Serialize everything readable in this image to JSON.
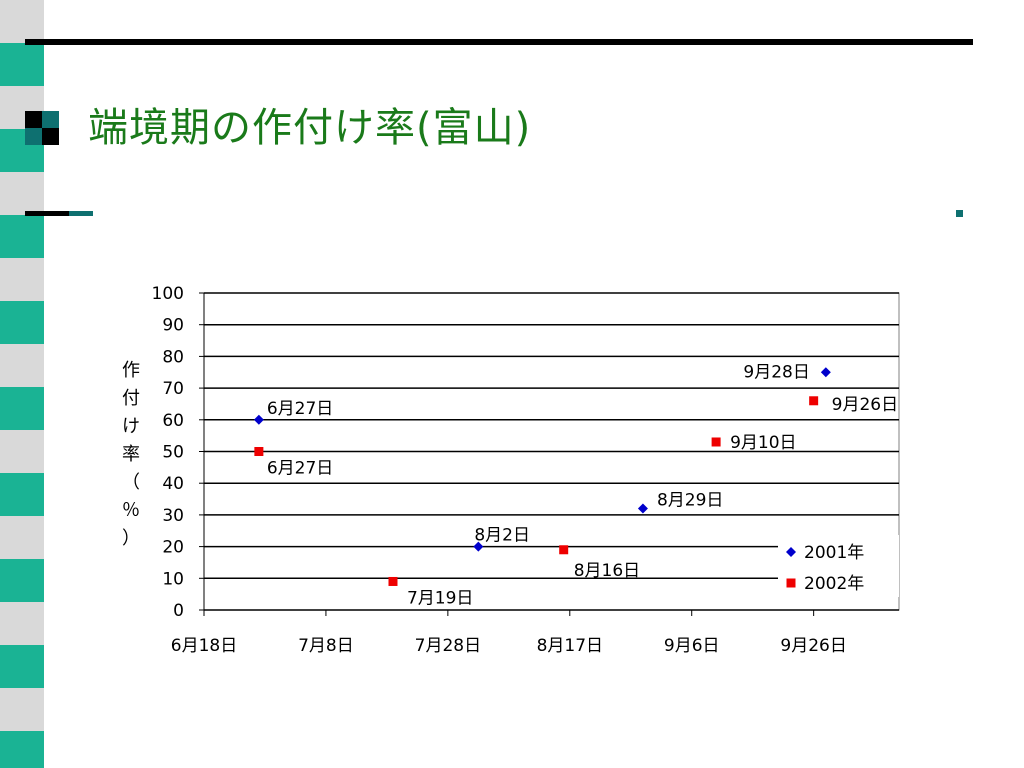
{
  "slide": {
    "title": "端境期の作付け率(富山)"
  },
  "chart_data": {
    "type": "scatter",
    "ylabel": "作付け率（％）",
    "ylim": [
      0,
      100
    ],
    "yticks": [
      "0",
      "10",
      "20",
      "30",
      "40",
      "50",
      "60",
      "70",
      "80",
      "90",
      "100"
    ],
    "xlim": [
      "2000-06-18",
      "2000-10-10"
    ],
    "xticks": [
      {
        "date": "2000-06-18",
        "label": "6月18日"
      },
      {
        "date": "2000-07-08",
        "label": "7月8日"
      },
      {
        "date": "2000-07-28",
        "label": "7月28日"
      },
      {
        "date": "2000-08-17",
        "label": "8月17日"
      },
      {
        "date": "2000-09-06",
        "label": "9月6日"
      },
      {
        "date": "2000-09-26",
        "label": "9月26日"
      }
    ],
    "grid": true,
    "legend": "bottom-right",
    "series": [
      {
        "name": "2001年",
        "color": "#0000cc",
        "marker": "diamond",
        "points": [
          {
            "x": "2000-06-27",
            "y": 60,
            "label": "6月27日"
          },
          {
            "x": "2000-08-02",
            "y": 20,
            "label": "8月2日"
          },
          {
            "x": "2000-08-29",
            "y": 32,
            "label": "8月29日"
          },
          {
            "x": "2000-09-28",
            "y": 75,
            "label": "9月28日"
          }
        ]
      },
      {
        "name": "2002年",
        "color": "#ee0000",
        "marker": "square",
        "points": [
          {
            "x": "2000-06-27",
            "y": 50,
            "label": "6月27日"
          },
          {
            "x": "2000-07-19",
            "y": 9,
            "label": "7月19日"
          },
          {
            "x": "2000-08-16",
            "y": 19,
            "label": "8月16日"
          },
          {
            "x": "2000-09-10",
            "y": 53,
            "label": "9月10日"
          },
          {
            "x": "2000-09-26",
            "y": 66,
            "label": "9月26日"
          }
        ]
      }
    ]
  }
}
